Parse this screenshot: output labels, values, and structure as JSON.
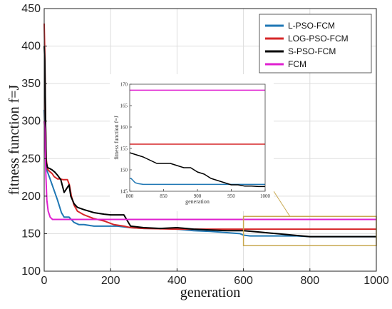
{
  "chart_data": [
    {
      "type": "line",
      "xlabel": "generation",
      "ylabel": "fitness function f=J",
      "xlim": [
        0,
        1000
      ],
      "ylim": [
        100,
        450
      ],
      "xticks": [
        0,
        200,
        400,
        600,
        800,
        1000
      ],
      "yticks": [
        100,
        150,
        200,
        250,
        300,
        350,
        400,
        450
      ],
      "grid": true,
      "legend_position": "top-right",
      "series": [
        {
          "name": "L-PSO-FCM",
          "color": "#1f77b4",
          "x": [
            0,
            2,
            4,
            6,
            10,
            16,
            24,
            32,
            40,
            52,
            60,
            75,
            90,
            105,
            120,
            150,
            180,
            220,
            260,
            300,
            350,
            400,
            450,
            500,
            530,
            560,
            590,
            600,
            620,
            650,
            700,
            760,
            800,
            850,
            900,
            1000
          ],
          "y": [
            315,
            290,
            260,
            238,
            232,
            225,
            215,
            205,
            195,
            178,
            172,
            172,
            165,
            162,
            162,
            160,
            160,
            160,
            158,
            157,
            157,
            156,
            154,
            153,
            152,
            151,
            150,
            148,
            147,
            147,
            147,
            147,
            146,
            146,
            146,
            146
          ]
        },
        {
          "name": "LOG-PSO-FCM",
          "color": "#d62728",
          "x": [
            0,
            2,
            4,
            6,
            10,
            16,
            24,
            30,
            40,
            48,
            56,
            62,
            70,
            76,
            82,
            90,
            100,
            120,
            150,
            180,
            210,
            240,
            260,
            300,
            400,
            500,
            600,
            700,
            800,
            900,
            1000
          ],
          "y": [
            430,
            390,
            300,
            250,
            236,
            233,
            230,
            226,
            223,
            223,
            222,
            222,
            222,
            215,
            200,
            188,
            180,
            175,
            170,
            167,
            162,
            160,
            158,
            157,
            156,
            156,
            156,
            156,
            156,
            156,
            156
          ]
        },
        {
          "name": "S-PSO-FCM",
          "color": "#000000",
          "x": [
            0,
            2,
            4,
            6,
            10,
            16,
            24,
            32,
            40,
            50,
            60,
            75,
            80,
            90,
            100,
            120,
            150,
            180,
            200,
            240,
            260,
            300,
            350,
            400,
            450,
            500,
            550,
            600,
            650,
            700,
            750,
            800,
            850,
            900,
            1000
          ],
          "y": [
            400,
            380,
            300,
            245,
            238,
            237,
            235,
            232,
            228,
            222,
            205,
            215,
            200,
            190,
            185,
            182,
            178,
            176,
            175,
            175,
            160,
            158,
            157,
            158,
            156,
            155,
            154,
            154,
            152,
            150,
            148,
            146,
            146,
            146,
            146
          ]
        },
        {
          "name": "FCM",
          "color": "#e020d0",
          "x": [
            0,
            2,
            5,
            8,
            12,
            18,
            25,
            40,
            100,
            300,
            600,
            1000
          ],
          "y": [
            300,
            290,
            230,
            195,
            180,
            172,
            169,
            169,
            169,
            169,
            169,
            169
          ]
        }
      ]
    },
    {
      "type": "line",
      "xlabel": "generation",
      "ylabel": "fitness function f=J",
      "xlim": [
        800,
        1000
      ],
      "ylim": [
        145,
        170
      ],
      "xticks": [
        800,
        850,
        900,
        950,
        1000
      ],
      "yticks": [
        145,
        150,
        155,
        160,
        165,
        170
      ],
      "grid": false,
      "series": [
        {
          "color": "#1f77b4",
          "x": [
            800,
            802,
            805,
            808,
            812,
            820,
            850,
            900,
            1000
          ],
          "y": [
            148,
            148,
            147.5,
            147,
            146.8,
            146.6,
            146.6,
            146.6,
            146.6
          ]
        },
        {
          "color": "#d62728",
          "x": [
            800,
            1000
          ],
          "y": [
            156,
            156
          ]
        },
        {
          "color": "#000000",
          "x": [
            800,
            820,
            840,
            860,
            880,
            890,
            900,
            910,
            920,
            930,
            940,
            950,
            960,
            970,
            980,
            990,
            1000
          ],
          "y": [
            154,
            153,
            151.5,
            151.5,
            150.5,
            150.5,
            149.5,
            149,
            148,
            147.5,
            147,
            146.5,
            146.5,
            146.2,
            146.2,
            146.1,
            146.1
          ]
        },
        {
          "color": "#e020d0",
          "x": [
            800,
            1000
          ],
          "y": [
            168.6,
            168.6
          ]
        }
      ]
    }
  ],
  "annotation": {
    "box_x": [
      600,
      1000
    ],
    "box_y": [
      134,
      173
    ],
    "color": "#c8a850"
  }
}
